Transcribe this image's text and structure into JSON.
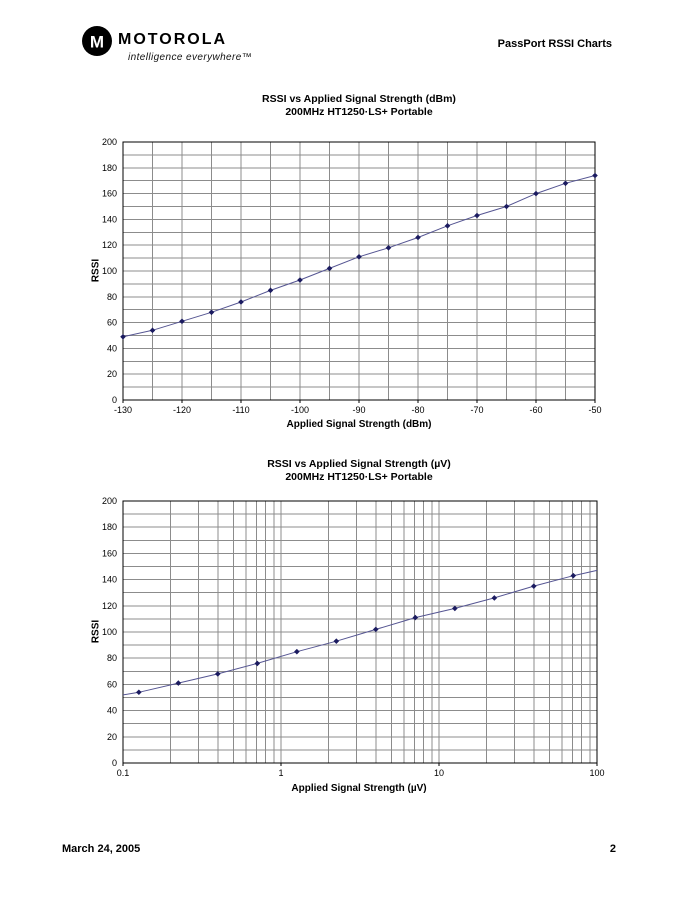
{
  "header": {
    "brand": "MOTOROLA",
    "brand_mark": "M",
    "tagline": "intelligence everywhere™",
    "doc_title": "PassPort RSSI Charts"
  },
  "footer": {
    "date": "March 24, 2005",
    "page_number": "2"
  },
  "chart_style": {
    "grid_color": "#8c8c8c",
    "border_color": "#000000",
    "line_color": "#555592",
    "marker_color": "#1b1b60"
  },
  "chart_data": [
    {
      "type": "line",
      "title": "RSSI vs Applied Signal Strength (dBm)",
      "subtitle": "200MHz HT1250·LS+ Portable",
      "xlabel": "Applied Signal Strength (dBm)",
      "ylabel": "RSSI",
      "x_scale": "linear",
      "xlim": [
        -130,
        -50
      ],
      "ylim": [
        0,
        200
      ],
      "x_major_ticks": [
        -130,
        -120,
        -110,
        -100,
        -90,
        -80,
        -70,
        -60,
        -50
      ],
      "x_tick_labels": [
        "-130",
        "-120",
        "-110",
        "-100",
        "-90",
        "-80",
        "-70",
        "-60",
        "-50"
      ],
      "x_gridline_step": 5,
      "y_major_ticks": [
        0,
        20,
        40,
        60,
        80,
        100,
        120,
        140,
        160,
        180,
        200
      ],
      "y_gridline_step": 10,
      "grid": true,
      "legend": "none",
      "series": [
        {
          "name": "RSSI",
          "marker": "diamond",
          "points": [
            [
              -130,
              49
            ],
            [
              -125,
              54
            ],
            [
              -120,
              61
            ],
            [
              -115,
              68
            ],
            [
              -110,
              76
            ],
            [
              -105,
              85
            ],
            [
              -100,
              93
            ],
            [
              -95,
              102
            ],
            [
              -90,
              111
            ],
            [
              -85,
              118
            ],
            [
              -80,
              126
            ],
            [
              -75,
              135
            ],
            [
              -70,
              143
            ],
            [
              -65,
              150
            ],
            [
              -60,
              160
            ],
            [
              -55,
              168
            ],
            [
              -50,
              174
            ]
          ]
        }
      ]
    },
    {
      "type": "line",
      "title": "RSSI vs Applied Signal Strength (µV)",
      "subtitle": "200MHz HT1250·LS+ Portable",
      "xlabel": "Applied Signal Strength (µV)",
      "ylabel": "RSSI",
      "x_scale": "log",
      "xlim": [
        0.1,
        100
      ],
      "ylim": [
        0,
        200
      ],
      "x_major_ticks": [
        0.1,
        1,
        10,
        100
      ],
      "x_tick_labels": [
        "0.1",
        "1",
        "10",
        "100"
      ],
      "y_major_ticks": [
        0,
        20,
        40,
        60,
        80,
        100,
        120,
        140,
        160,
        180,
        200
      ],
      "y_gridline_step": 10,
      "grid": true,
      "legend": "none",
      "series": [
        {
          "name": "RSSI",
          "marker": "diamond",
          "points": [
            [
              0.126,
              54
            ],
            [
              0.224,
              61
            ],
            [
              0.398,
              68
            ],
            [
              0.708,
              76
            ],
            [
              1.26,
              85
            ],
            [
              2.24,
              93
            ],
            [
              3.98,
              102
            ],
            [
              7.08,
              111
            ],
            [
              12.6,
              118
            ],
            [
              22.4,
              126
            ],
            [
              39.8,
              135
            ],
            [
              70.8,
              143
            ]
          ],
          "edge_points": {
            "start": [
              0.1,
              52
            ],
            "end": [
              100,
              147
            ]
          }
        }
      ]
    }
  ]
}
